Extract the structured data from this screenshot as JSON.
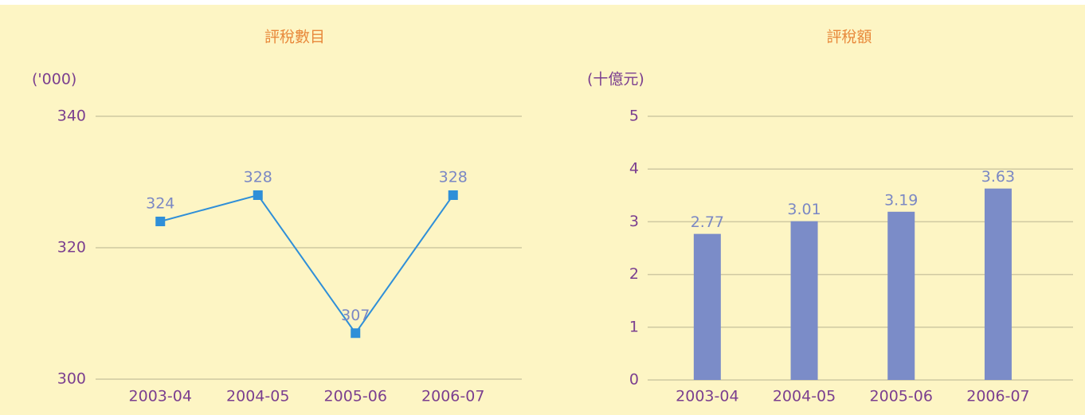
{
  "chart_data": [
    {
      "type": "line",
      "title": "評稅數目",
      "y_label": "('000)",
      "categories": [
        "2003-04",
        "2004-05",
        "2005-06",
        "2006-07"
      ],
      "values": [
        324,
        328,
        307,
        328
      ],
      "color": "#2f8fd8",
      "ylim": [
        300,
        340
      ],
      "yticks": [
        300,
        320,
        340
      ],
      "grid": true
    },
    {
      "type": "bar",
      "title": "評稅額",
      "y_label": "(十億元)",
      "categories": [
        "2003-04",
        "2004-05",
        "2005-06",
        "2006-07"
      ],
      "values": [
        2.77,
        3.01,
        3.19,
        3.63
      ],
      "color": "#7b8cc8",
      "ylim": [
        0,
        5
      ],
      "yticks": [
        0,
        1,
        2,
        3,
        4,
        5
      ],
      "grid": true
    }
  ]
}
